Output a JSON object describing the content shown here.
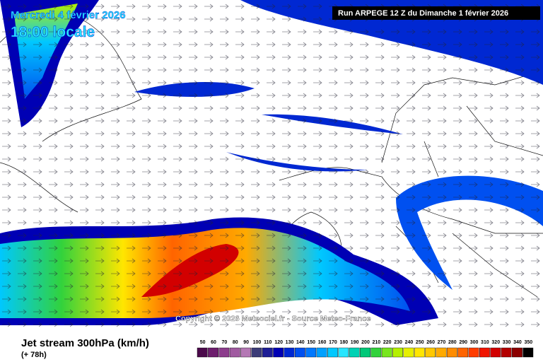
{
  "header": {
    "date": "Mercredi 4 février 2026",
    "time": "18:00 locale",
    "run": "Run ARPEGE 12 Z du Dimanche 1 février 2026"
  },
  "copyright": "Copyright © 2026 Meteociel.fr - Source Meteo-France",
  "footer": {
    "title": "Jet stream 300hPa (km/h)",
    "lead": "(+ 78h)"
  },
  "legend": {
    "labels": [
      50,
      60,
      70,
      80,
      90,
      100,
      110,
      120,
      130,
      140,
      150,
      160,
      170,
      180,
      190,
      200,
      210,
      220,
      230,
      240,
      250,
      260,
      270,
      280,
      290,
      300,
      310,
      320,
      330,
      340,
      350
    ],
    "colors": [
      "#4b0a4b",
      "#6e1e6e",
      "#8c3c8c",
      "#a05aa0",
      "#b478b4",
      "#3c3c78",
      "#1e1e96",
      "#0000b4",
      "#0028d2",
      "#0050f0",
      "#0078ff",
      "#00a0ff",
      "#00c8ff",
      "#28e6ff",
      "#00d2b4",
      "#00c878",
      "#32d23c",
      "#78e61e",
      "#b4f000",
      "#e6f000",
      "#ffe600",
      "#ffc800",
      "#ffaa00",
      "#ff8c00",
      "#ff6400",
      "#ff3c00",
      "#f01400",
      "#d20000",
      "#b40000",
      "#8c0000",
      "#000000"
    ]
  }
}
